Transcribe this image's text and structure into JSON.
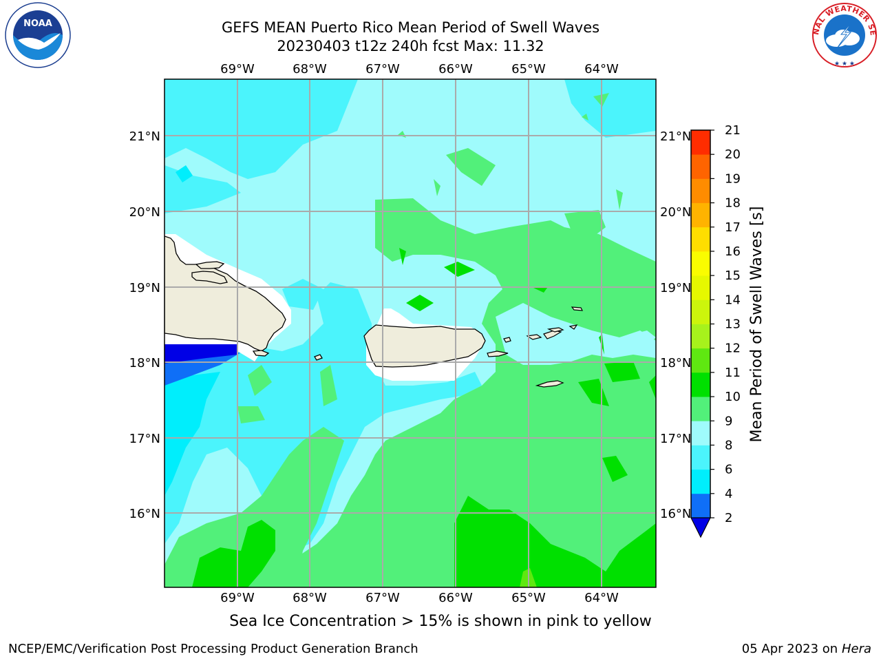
{
  "title": {
    "line1": "GEFS MEAN Puerto Rico Mean Period of Swell Waves",
    "line2": "20230403 t12z 240h fcst   Max: 11.32"
  },
  "map": {
    "lon_labels": [
      "69°W",
      "68°W",
      "67°W",
      "66°W",
      "65°W",
      "64°W"
    ],
    "lat_labels": [
      "21°N",
      "20°N",
      "19°N",
      "18°N",
      "17°N",
      "16°N"
    ],
    "land_color": "#efeddc",
    "region": [
      "Hispaniola",
      "Puerto Rico",
      "Virgin Islands"
    ]
  },
  "colorbar": {
    "label": "Mean Period of Swell Waves [s]",
    "ticks": [
      "2",
      "4",
      "6",
      "8",
      "9",
      "10",
      "11",
      "12",
      "13",
      "14",
      "15",
      "16",
      "17",
      "18",
      "19",
      "20",
      "21"
    ],
    "colors": [
      "#0f6ff7",
      "#00eefc",
      "#4bf4fc",
      "#9ffbfc",
      "#52f07a",
      "#00e000",
      "#5fe811",
      "#a7f21c",
      "#ccf50c",
      "#e6f800",
      "#fafc00",
      "#fede00",
      "#ffb300",
      "#ff8c00",
      "#ff6400",
      "#ff2d00"
    ],
    "under_color": "#0000e6"
  },
  "footer": {
    "ice_note": "Sea Ice Concentration > 15% is shown in pink to yellow",
    "credit": "NCEP/EMC/Verification Post Processing Product Generation Branch",
    "date": "05 Apr 2023 on ",
    "machine": "Hera"
  },
  "logos": {
    "noaa_text": "NOAA",
    "nws_text": "NATIONAL WEATHER SERVICE"
  }
}
